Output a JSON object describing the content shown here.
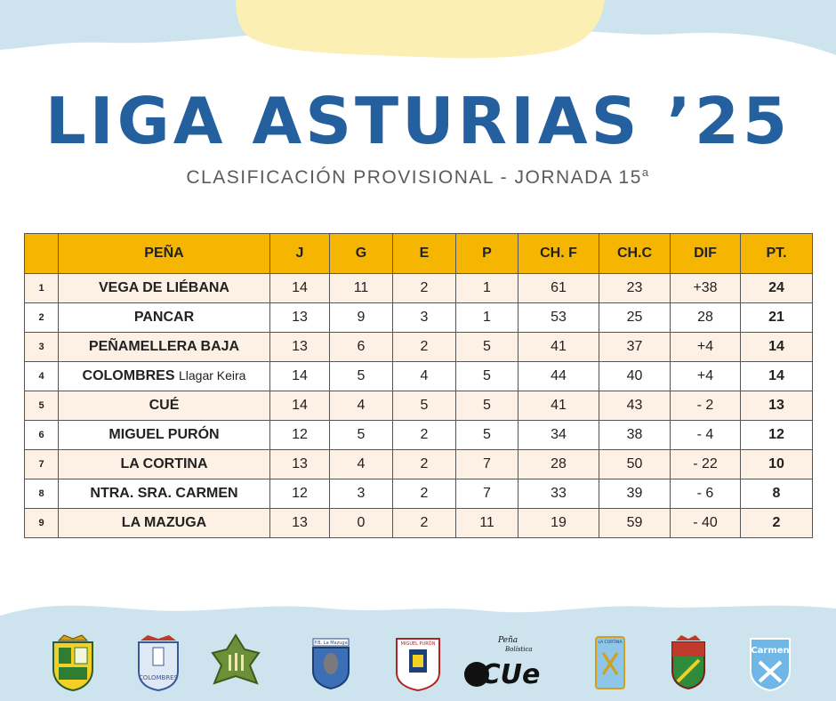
{
  "header": {
    "title": "LIGA ASTURIAS ’25",
    "subtitle_main": "CLASIFICACIÓN PROVISIONAL - JORNADA 15",
    "subtitle_sup": "a"
  },
  "table": {
    "columns": [
      "",
      "PEÑA",
      "J",
      "G",
      "E",
      "P",
      "CH. F",
      "CH.C",
      "DIF",
      "PT."
    ],
    "rows": [
      {
        "pos": "1",
        "team": "VEGA DE LIÉBANA",
        "team_sub": "",
        "j": "14",
        "g": "11",
        "e": "2",
        "p": "1",
        "chf": "61",
        "chc": "23",
        "dif": "+38",
        "pt": "24"
      },
      {
        "pos": "2",
        "team": "PANCAR",
        "team_sub": "",
        "j": "13",
        "g": "9",
        "e": "3",
        "p": "1",
        "chf": "53",
        "chc": "25",
        "dif": "28",
        "pt": "21"
      },
      {
        "pos": "3",
        "team": "PEÑAMELLERA BAJA",
        "team_sub": "",
        "j": "13",
        "g": "6",
        "e": "2",
        "p": "5",
        "chf": "41",
        "chc": "37",
        "dif": "+4",
        "pt": "14"
      },
      {
        "pos": "4",
        "team": "COLOMBRES",
        "team_sub": "Llagar Keira",
        "j": "14",
        "g": "5",
        "e": "4",
        "p": "5",
        "chf": "44",
        "chc": "40",
        "dif": "+4",
        "pt": "14"
      },
      {
        "pos": "5",
        "team": "CUÉ",
        "team_sub": "",
        "j": "14",
        "g": "4",
        "e": "5",
        "p": "5",
        "chf": "41",
        "chc": "43",
        "dif": "- 2",
        "pt": "13"
      },
      {
        "pos": "6",
        "team": "MIGUEL PURÓN",
        "team_sub": "",
        "j": "12",
        "g": "5",
        "e": "2",
        "p": "5",
        "chf": "34",
        "chc": "38",
        "dif": "- 4",
        "pt": "12"
      },
      {
        "pos": "7",
        "team": "LA CORTINA",
        "team_sub": "",
        "j": "13",
        "g": "4",
        "e": "2",
        "p": "7",
        "chf": "28",
        "chc": "50",
        "dif": "- 22",
        "pt": "10"
      },
      {
        "pos": "8",
        "team": "NTRA. SRA. CARMEN",
        "team_sub": "",
        "j": "12",
        "g": "3",
        "e": "2",
        "p": "7",
        "chf": "33",
        "chc": "39",
        "dif": "- 6",
        "pt": "8"
      },
      {
        "pos": "9",
        "team": "LA MAZUGA",
        "team_sub": "",
        "j": "13",
        "g": "0",
        "e": "2",
        "p": "11",
        "chf": "19",
        "chc": "59",
        "dif": "- 40",
        "pt": "2"
      }
    ]
  },
  "logos": {
    "items": [
      {
        "name": "shield-crest-icon"
      },
      {
        "name": "colombres-crest-icon",
        "text": "COLOMBRES"
      },
      {
        "name": "leaf-crest-icon"
      },
      {
        "name": "la-mazuga-crest-icon",
        "text": "P.B. La Mazuga"
      },
      {
        "name": "miguel-puron-crest-icon",
        "text": "MIGUEL PURÓN"
      },
      {
        "name": "cue-logo-icon",
        "text_top": "Peña",
        "text_mid": "Bolística",
        "text_main": "CUe"
      },
      {
        "name": "la-cortina-crest-icon",
        "text": "LA CORTINA"
      },
      {
        "name": "municipal-crest-icon"
      },
      {
        "name": "carmen-crest-icon",
        "text": "Carmen"
      }
    ]
  },
  "colors": {
    "title_blue": "#245f9e",
    "header_yellow": "#f6b500",
    "row_cream": "#fdf0e4",
    "sky_blue": "#cde4ef",
    "sun_yellow": "#fbefb4"
  }
}
